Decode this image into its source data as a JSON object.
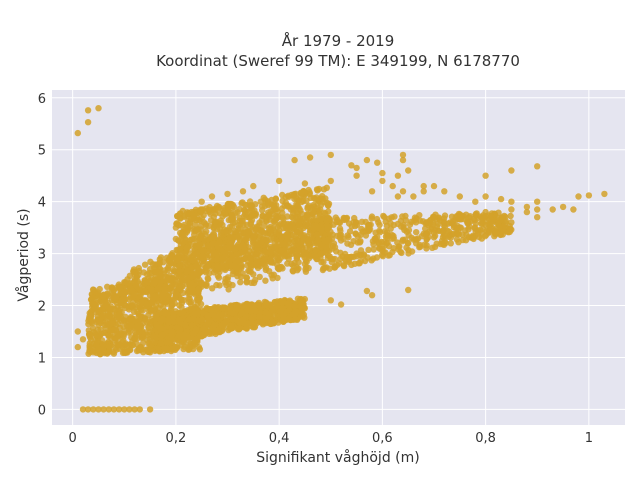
{
  "chart_data": {
    "type": "scatter",
    "title_lines": [
      "År 1979 - 2019",
      "Koordinat (Sweref 99 TM): E 349199, N 6178770"
    ],
    "xlabel": "Signifikant våghöjd (m)",
    "ylabel": "Vågperiod (s)",
    "xlim": [
      -0.04,
      1.07
    ],
    "ylim": [
      -0.3,
      6.15
    ],
    "x_ticks": [
      0,
      0.2,
      0.4,
      0.6,
      0.8,
      1
    ],
    "x_tick_labels": [
      "0",
      "0,2",
      "0,4",
      "0,6",
      "0,8",
      "1"
    ],
    "y_ticks": [
      0,
      1,
      2,
      3,
      4,
      5,
      6
    ],
    "y_tick_labels": [
      "0",
      "1",
      "2",
      "3",
      "4",
      "5",
      "6"
    ],
    "grid": true,
    "legend": false,
    "colors": {
      "plot_bg": "#e5e5f0",
      "grid": "#ffffff",
      "marker": "#d4a22a",
      "text": "#333333"
    },
    "series": [
      {
        "marker_color": "#d4a22a",
        "points": [
          [
            0.01,
            5.32
          ],
          [
            0.03,
            5.53
          ],
          [
            0.03,
            5.76
          ],
          [
            0.05,
            5.8
          ],
          [
            0.02,
            0
          ],
          [
            0.03,
            0
          ],
          [
            0.04,
            0
          ],
          [
            0.05,
            0
          ],
          [
            0.06,
            0
          ],
          [
            0.07,
            0
          ],
          [
            0.08,
            0
          ],
          [
            0.09,
            0
          ],
          [
            0.1,
            0
          ],
          [
            0.11,
            0
          ],
          [
            0.12,
            0
          ],
          [
            0.13,
            0
          ],
          [
            0.15,
            0
          ],
          [
            0.01,
            1.2
          ],
          [
            0.01,
            1.5
          ],
          [
            0.02,
            1.35
          ],
          [
            0.04,
            1.1
          ],
          [
            0.05,
            1.9
          ],
          [
            0.06,
            2.2
          ],
          [
            0.08,
            2.3
          ],
          [
            0.1,
            2.45
          ],
          [
            0.12,
            2.6
          ],
          [
            0.15,
            2.7
          ],
          [
            0.2,
            1.2
          ],
          [
            0.05,
            1.15
          ],
          [
            0.1,
            1.1
          ],
          [
            0.15,
            1.1
          ],
          [
            0.65,
            2.3
          ],
          [
            0.57,
            2.28
          ],
          [
            0.58,
            2.2
          ],
          [
            0.5,
            2.1
          ],
          [
            0.52,
            2.02
          ],
          [
            0.35,
            4.3
          ],
          [
            0.4,
            4.4
          ],
          [
            0.45,
            4.35
          ],
          [
            0.5,
            4.4
          ],
          [
            0.55,
            4.5
          ],
          [
            0.6,
            4.55
          ],
          [
            0.63,
            4.5
          ],
          [
            0.65,
            4.6
          ],
          [
            0.33,
            4.2
          ],
          [
            0.25,
            4.0
          ],
          [
            0.23,
            3.8
          ],
          [
            0.2,
            3.5
          ],
          [
            0.27,
            4.1
          ],
          [
            0.3,
            4.15
          ],
          [
            0.43,
            4.8
          ],
          [
            0.46,
            4.85
          ],
          [
            0.5,
            4.9
          ],
          [
            0.54,
            4.7
          ],
          [
            0.57,
            4.8
          ],
          [
            0.59,
            4.75
          ],
          [
            0.64,
            4.9
          ],
          [
            0.64,
            4.8
          ],
          [
            0.55,
            4.65
          ],
          [
            0.6,
            4.4
          ],
          [
            0.62,
            4.3
          ],
          [
            0.64,
            4.2
          ],
          [
            0.66,
            4.1
          ],
          [
            0.68,
            4.2
          ],
          [
            0.7,
            4.3
          ],
          [
            0.72,
            4.2
          ],
          [
            0.75,
            4.1
          ],
          [
            0.78,
            4.0
          ],
          [
            0.8,
            4.1
          ],
          [
            0.83,
            4.05
          ],
          [
            0.85,
            4.0
          ],
          [
            0.88,
            3.9
          ],
          [
            0.9,
            4.0
          ],
          [
            0.95,
            3.9
          ],
          [
            0.98,
            4.1
          ],
          [
            1.0,
            4.12
          ],
          [
            1.03,
            4.15
          ],
          [
            0.8,
            4.5
          ],
          [
            0.85,
            4.6
          ],
          [
            0.9,
            4.68
          ],
          [
            0.68,
            4.3
          ],
          [
            0.58,
            4.2
          ],
          [
            0.63,
            4.1
          ],
          [
            0.7,
            3.7
          ],
          [
            0.8,
            3.8
          ],
          [
            0.85,
            3.85
          ],
          [
            0.88,
            3.8
          ],
          [
            0.9,
            3.85
          ],
          [
            0.93,
            3.85
          ],
          [
            0.97,
            3.85
          ],
          [
            0.55,
            3.0
          ],
          [
            0.6,
            3.1
          ],
          [
            0.65,
            3.2
          ],
          [
            0.7,
            3.4
          ],
          [
            0.75,
            3.5
          ],
          [
            0.8,
            3.55
          ],
          [
            0.85,
            3.6
          ],
          [
            0.9,
            3.7
          ],
          [
            0.45,
            2.8
          ],
          [
            0.5,
            2.9
          ],
          [
            0.55,
            2.95
          ],
          [
            0.6,
            3.05
          ],
          [
            0.4,
            2.7
          ],
          [
            0.35,
            2.6
          ],
          [
            0.3,
            2.5
          ]
        ]
      }
    ],
    "dense_bands": [
      {
        "xs": [
          0.03,
          0.25
        ],
        "ybot": [
          1.05,
          1.15
        ],
        "ytop": [
          2.3,
          2.7
        ]
      },
      {
        "xs": [
          0.1,
          0.3,
          0.5,
          0.7,
          0.85
        ],
        "ybot": [
          1.9,
          2.3,
          2.7,
          3.1,
          3.4
        ],
        "ytop": [
          2.7,
          3.4,
          3.7,
          3.75,
          3.8
        ]
      },
      {
        "xs": [
          0.16,
          0.45
        ],
        "ybot": [
          1.25,
          1.75
        ],
        "ytop": [
          1.85,
          2.15
        ]
      },
      {
        "xs": [
          0.2,
          0.5
        ],
        "ybot": [
          2.5,
          3.0
        ],
        "ytop": [
          3.8,
          4.3
        ]
      }
    ]
  }
}
